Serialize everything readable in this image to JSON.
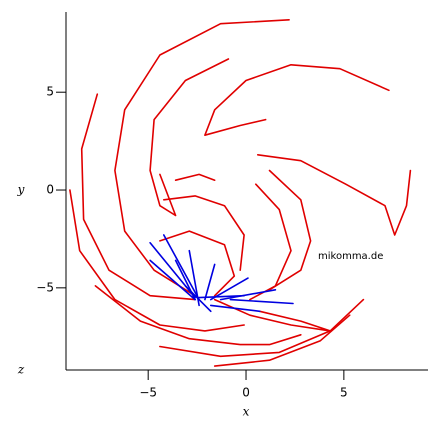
{
  "chart_data": {
    "type": "line",
    "x_label": "x",
    "y_label": "y",
    "z_label": "z",
    "annotation": "mikomma.de",
    "xlim": [
      -9.2,
      9.3
    ],
    "ylim": [
      -9.2,
      9.1
    ],
    "xticks": [
      {
        "value": -5,
        "label": "−5"
      },
      0,
      5
    ],
    "yticks": [
      {
        "value": -5,
        "label": "−5"
      },
      0,
      5
    ],
    "series": [
      {
        "color": "#e00000",
        "x": [
          2.2,
          -1.3,
          -4.4,
          -6.2,
          -6.7,
          -6.2,
          -4.7,
          -2.6
        ],
        "y": [
          8.7,
          8.5,
          6.9,
          4.1,
          1.0,
          -2.1,
          -4.1,
          -5.4
        ]
      },
      {
        "color": "#e00000",
        "x": [
          -7.6,
          -8.4,
          -8.3,
          -7.0,
          -4.9,
          -2.6
        ],
        "y": [
          4.9,
          2.1,
          -1.5,
          -4.1,
          -5.4,
          -5.6
        ]
      },
      {
        "color": "#e00000",
        "x": [
          -9.0,
          -8.5,
          -6.7,
          -4.4,
          -2.1,
          -0.1
        ],
        "y": [
          0,
          -3.1,
          -5.6,
          -6.9,
          -7.2,
          -6.9
        ]
      },
      {
        "color": "#e00000",
        "x": [
          -7.7,
          -5.4,
          -2.9,
          -0.3,
          1.2,
          2.8
        ],
        "y": [
          -4.9,
          -6.7,
          -7.6,
          -7.9,
          -7.9,
          -7.4
        ]
      },
      {
        "color": "#e00000",
        "x": [
          -4.4,
          -1.3,
          1.7,
          4.3,
          6.0
        ],
        "y": [
          -8.0,
          -8.5,
          -8.3,
          -7.2,
          -5.6
        ]
      },
      {
        "color": "#e00000",
        "x": [
          -1.6,
          1.2,
          3.8,
          5.3
        ],
        "y": [
          -9.0,
          -8.7,
          -7.7,
          -6.4
        ]
      },
      {
        "color": "#e00000",
        "x": [
          -0.9,
          -3.1,
          -4.7,
          -4.9,
          -4.4,
          -3.6,
          -4.4
        ],
        "y": [
          6.7,
          5.6,
          3.6,
          1.0,
          -0.8,
          -1.3,
          0.8
        ]
      },
      {
        "color": "#e00000",
        "x": [
          7.3,
          4.8,
          2.3,
          0,
          -1.6,
          -2.1,
          -0.3,
          1.0
        ],
        "y": [
          5.1,
          6.2,
          6.4,
          5.6,
          4.1,
          2.8,
          3.3,
          3.6
        ]
      },
      {
        "color": "#e00000",
        "x": [
          0.6,
          2.8,
          5.1,
          7.1,
          7.6,
          8.2,
          8.4
        ],
        "y": [
          1.8,
          1.5,
          0.3,
          -0.8,
          -2.3,
          -0.8,
          1.0
        ]
      },
      {
        "color": "#e00000",
        "x": [
          1.2,
          2.8,
          3.3,
          2.8,
          1.2
        ],
        "y": [
          1.0,
          -0.5,
          -2.6,
          -4.1,
          -5.1
        ]
      },
      {
        "color": "#e00000",
        "x": [
          0.5,
          1.7,
          2.3,
          1.5,
          0.2
        ],
        "y": [
          0.3,
          -1.0,
          -3.1,
          -4.9,
          -5.6
        ]
      },
      {
        "color": "#e00000",
        "x": [
          -4.4,
          -2.9,
          -1.1,
          -0.6,
          -1.6
        ],
        "y": [
          -2.6,
          -2.1,
          -2.8,
          -4.4,
          -5.4
        ]
      },
      {
        "color": "#e00000",
        "x": [
          -4.2,
          -2.6,
          -1.1,
          -0.1,
          -0.3
        ],
        "y": [
          -0.5,
          -0.3,
          -0.8,
          -2.3,
          -4.1
        ]
      },
      {
        "color": "#e00000",
        "x": [
          -3.6,
          -2.4,
          -1.6
        ],
        "y": [
          0.5,
          0.8,
          0.5
        ]
      },
      {
        "color": "#e00000",
        "x": [
          -1.6,
          0.2,
          2.3,
          4.3,
          2.8,
          0.7
        ],
        "y": [
          -5.6,
          -6.4,
          -6.9,
          -7.2,
          -6.7,
          -6.2
        ]
      },
      {
        "color": "#0000e0",
        "x": [
          -4.9,
          -2.6
        ],
        "y": [
          -2.7,
          -5.5
        ]
      },
      {
        "color": "#0000e0",
        "x": [
          -4.2,
          -2.4
        ],
        "y": [
          -2.3,
          -5.6
        ]
      },
      {
        "color": "#0000e0",
        "x": [
          -2.9,
          -2.4
        ],
        "y": [
          -3.1,
          -5.9
        ]
      },
      {
        "color": "#0000e0",
        "x": [
          -1.6,
          -2.1
        ],
        "y": [
          -3.8,
          -5.6
        ]
      },
      {
        "color": "#0000e0",
        "x": [
          0.1,
          -1.8
        ],
        "y": [
          -4.5,
          -5.6
        ]
      },
      {
        "color": "#0000e0",
        "x": [
          -0.1,
          -2.4
        ],
        "y": [
          -5.4,
          -5.5
        ]
      },
      {
        "color": "#0000e0",
        "x": [
          1.5,
          -1.3
        ],
        "y": [
          -5.1,
          -5.6
        ]
      },
      {
        "color": "#0000e0",
        "x": [
          2.4,
          -0.8
        ],
        "y": [
          -5.8,
          -5.6
        ]
      },
      {
        "color": "#0000e0",
        "x": [
          0.7,
          -1.8
        ],
        "y": [
          -6.2,
          -5.9
        ]
      },
      {
        "color": "#0000e0",
        "x": [
          -3.6,
          -2.6
        ],
        "y": [
          -3.6,
          -5.6
        ]
      },
      {
        "color": "#0000e0",
        "x": [
          -4.9,
          -2.6
        ],
        "y": [
          -3.6,
          -5.6
        ]
      },
      {
        "color": "#0000e0",
        "x": [
          -3.1,
          -1.8
        ],
        "y": [
          -4.9,
          -6.2
        ]
      }
    ]
  }
}
